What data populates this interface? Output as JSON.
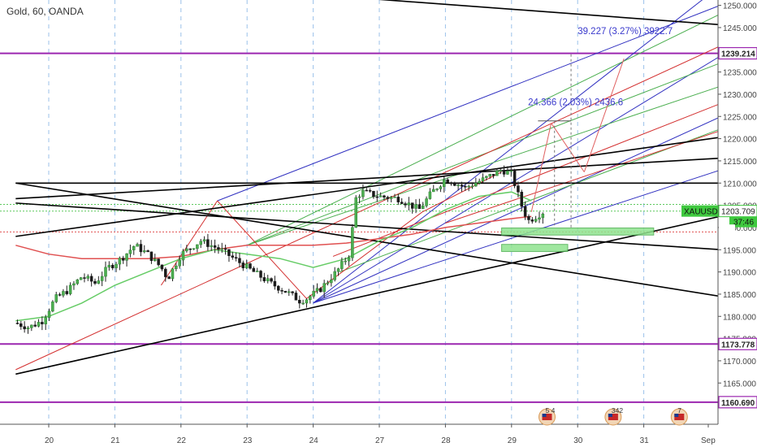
{
  "header": {
    "title": "Gold, 60, OANDA"
  },
  "colors": {
    "up": "#26a69a",
    "down": "#ef5350",
    "purple": "#9c27b0",
    "blue": "#3030c0",
    "green": "#4caf50",
    "red": "#d32f2f",
    "black": "#000000",
    "ema_fast": "#66cc66",
    "ema_slow": "#e05050",
    "zone": "#8fe38f"
  },
  "chart_data": {
    "type": "candlestick",
    "symbol": "Gold, 60, OANDA",
    "ticker": "XAUUSD",
    "x_ticks": [
      "20",
      "21",
      "22",
      "23",
      "24",
      "27",
      "28",
      "29",
      "30",
      "31",
      "Sep"
    ],
    "ylim": [
      1160,
      1252
    ],
    "y_ticks": [
      1165,
      1170,
      1175,
      1180,
      1185,
      1190,
      1195,
      1200,
      1205,
      1210,
      1215,
      1220,
      1225,
      1230,
      1235,
      1240,
      1245,
      1250
    ],
    "y_tick_labels": [
      "1165.000",
      "1170.000",
      "1175.000",
      "1180.000",
      "1185.000",
      "1190.000",
      "1195.000",
      "1200.000",
      "1205.000",
      "1210.000",
      "1215.000",
      "1220.000",
      "1225.000",
      "1230.000",
      "1235.000",
      "1240.000",
      "1245.000",
      "1250.000"
    ],
    "price_labels": [
      {
        "text": "1239.214",
        "value": 1239.214,
        "color": "#9c27b0"
      },
      {
        "text": "1173.778",
        "value": 1173.778,
        "color": "#9c27b0"
      },
      {
        "text": "1160.690",
        "value": 1160.69,
        "color": "#9c27b0"
      }
    ],
    "current": {
      "ticker": "XAUUSD",
      "price": "1203.709",
      "countdown": "37:46",
      "value": 1203.709
    },
    "horizontal_levels": [
      1239.214,
      1173.778,
      1160.69
    ],
    "ohlc_path": [
      [
        19.5,
        1178.5
      ],
      [
        19.7,
        1177.5
      ],
      [
        19.9,
        1179.0
      ],
      [
        20.1,
        1184.0
      ],
      [
        20.3,
        1186.0
      ],
      [
        20.5,
        1189.0
      ],
      [
        20.7,
        1187.5
      ],
      [
        20.9,
        1191.0
      ],
      [
        21.1,
        1193.0
      ],
      [
        21.3,
        1196.0
      ],
      [
        21.5,
        1194.0
      ],
      [
        21.7,
        1191.0
      ],
      [
        21.8,
        1188.5
      ],
      [
        22.0,
        1194.0
      ],
      [
        22.3,
        1197.0
      ],
      [
        22.6,
        1195.0
      ],
      [
        22.9,
        1192.0
      ],
      [
        23.1,
        1190.0
      ],
      [
        23.35,
        1187.5
      ],
      [
        23.6,
        1185.5
      ],
      [
        23.8,
        1183.5
      ],
      [
        23.9,
        1184.0
      ],
      [
        24.1,
        1186.0
      ],
      [
        24.35,
        1190.0
      ],
      [
        24.55,
        1194.0
      ],
      [
        24.65,
        1207.0
      ],
      [
        24.75,
        1208.0
      ],
      [
        25.0,
        1207.0
      ],
      [
        25.3,
        1206.5
      ],
      [
        25.6,
        1204.0
      ],
      [
        25.8,
        1208.0
      ],
      [
        26.0,
        1211.0
      ],
      [
        26.3,
        1209.0
      ],
      [
        26.6,
        1211.0
      ],
      [
        26.85,
        1213.0
      ],
      [
        27.0,
        1212.0
      ],
      [
        27.15,
        1205.0
      ],
      [
        27.25,
        1201.5
      ],
      [
        27.5,
        1203.7
      ]
    ],
    "ema_fast": [
      [
        19.5,
        1179
      ],
      [
        20.0,
        1180
      ],
      [
        20.5,
        1183
      ],
      [
        21.0,
        1187
      ],
      [
        21.5,
        1190
      ],
      [
        22.0,
        1193
      ],
      [
        22.5,
        1195
      ],
      [
        23.0,
        1194
      ],
      [
        23.5,
        1193
      ],
      [
        24.0,
        1191
      ],
      [
        24.5,
        1193
      ],
      [
        25.0,
        1197
      ],
      [
        25.5,
        1200
      ],
      [
        26.0,
        1204
      ],
      [
        26.5,
        1207
      ],
      [
        27.0,
        1208
      ],
      [
        27.3,
        1206
      ]
    ],
    "ema_slow": [
      [
        19.5,
        1196
      ],
      [
        20.0,
        1194
      ],
      [
        20.5,
        1193
      ],
      [
        21.0,
        1193
      ],
      [
        21.5,
        1193
      ],
      [
        22.0,
        1193.5
      ],
      [
        22.5,
        1195
      ],
      [
        23.0,
        1196
      ],
      [
        23.5,
        1196
      ],
      [
        24.0,
        1196
      ],
      [
        24.5,
        1196.5
      ],
      [
        25.0,
        1197.5
      ],
      [
        25.5,
        1198.5
      ],
      [
        26.0,
        1200
      ],
      [
        26.5,
        1201
      ],
      [
        27.0,
        1202
      ],
      [
        27.3,
        1202.5
      ]
    ],
    "annotations": [
      {
        "text": "39.227 (3.27%) 3922.7",
        "x": 28.0,
        "y": 1243.5
      },
      {
        "text": "24.366 (2.03%) 2436.6",
        "x": 27.25,
        "y": 1227.5
      }
    ],
    "events": [
      {
        "label": "5 4",
        "x": 27.5
      },
      {
        "label": "342",
        "x": 28.5
      },
      {
        "label": "7",
        "x": 29.5
      }
    ]
  }
}
